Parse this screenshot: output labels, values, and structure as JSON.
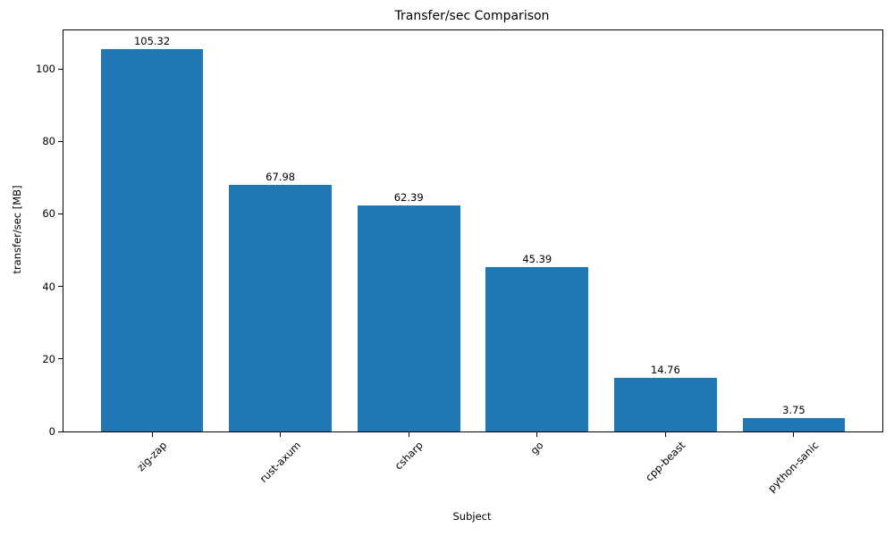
{
  "chart_data": {
    "type": "bar",
    "title": "Transfer/sec Comparison",
    "xlabel": "Subject",
    "ylabel": "transfer/sec [MB]",
    "categories": [
      "zig-zap",
      "rust-axum",
      "csharp",
      "go",
      "cpp-beast",
      "python-sanic"
    ],
    "values": [
      105.32,
      67.98,
      62.39,
      45.39,
      14.76,
      3.75
    ],
    "bar_labels": [
      "105.32",
      "67.98",
      "62.39",
      "45.39",
      "14.76",
      "3.75"
    ],
    "yticks": [
      0,
      20,
      40,
      60,
      80,
      100
    ],
    "ylim": [
      0,
      110.6
    ],
    "xlim": [
      -0.69,
      5.69
    ],
    "bar_width_fraction": 0.8,
    "x_tick_rotation_deg": 45,
    "grid": false,
    "legend": "none",
    "bar_color": "#1f77b4",
    "text_color": "#000000",
    "spine_color": "#000000",
    "background_color": "#ffffff"
  }
}
